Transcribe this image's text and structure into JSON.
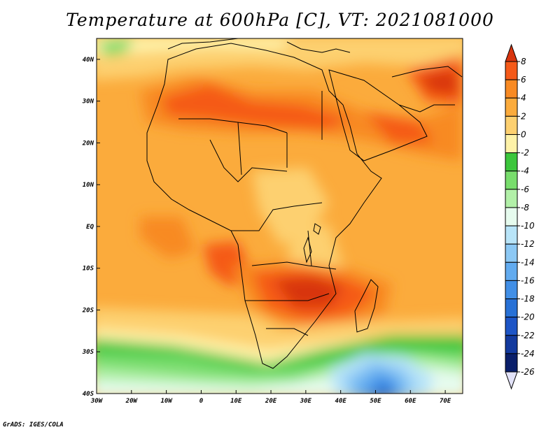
{
  "title": "Temperature at 600hPa [C], VT: 2021081000",
  "credit": "GrADS: IGES/COLA",
  "map": {
    "projection": "latlon",
    "lon_range": [
      -30,
      75
    ],
    "lat_range": [
      -40,
      45
    ],
    "lon_tick_values": [
      -30,
      -20,
      -10,
      0,
      10,
      20,
      30,
      40,
      50,
      60,
      70
    ],
    "lon_tick_labels": [
      "30W",
      "20W",
      "10W",
      "0",
      "10E",
      "20E",
      "30E",
      "40E",
      "50E",
      "60E",
      "70E"
    ],
    "lat_tick_values": [
      40,
      30,
      20,
      10,
      0,
      -10,
      -20,
      -30,
      -40
    ],
    "lat_tick_labels": [
      "40N",
      "30N",
      "20N",
      "10N",
      "EQ",
      "10S",
      "20S",
      "30S",
      "40S"
    ]
  },
  "colorbar": {
    "levels": [
      "8",
      "6",
      "4",
      "2",
      "0",
      "-2",
      "-4",
      "-6",
      "-8",
      "-10",
      "-12",
      "-14",
      "-16",
      "-18",
      "-20",
      "-22",
      "-24",
      "-26"
    ],
    "colors": [
      "#d8350f",
      "#f55a19",
      "#f88a23",
      "#fbab3c",
      "#fdd070",
      "#fef2a8",
      "#3cc63c",
      "#78dd6c",
      "#b2f0a8",
      "#e6fbee",
      "#b8e4f8",
      "#8cc8f4",
      "#62abef",
      "#418fe6",
      "#2871d6",
      "#1d55c6",
      "#133a9e",
      "#0a1f6a",
      "#e2e2f8"
    ]
  }
}
